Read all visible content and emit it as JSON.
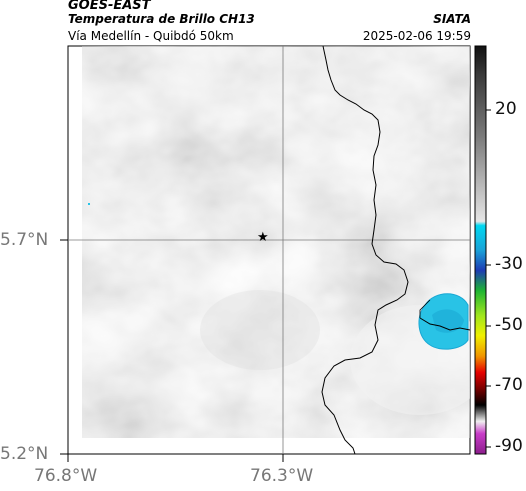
{
  "header": {
    "satellite": "GOES-EAST",
    "product": "Temperatura de Brillo CH13",
    "route": "Vía Medellín - Quibdó 50km",
    "organization": "SIATA",
    "datetime": "2025-02-06 19:59"
  },
  "axes": {
    "lat_ticks": [
      "5.7°N",
      "5.2°N"
    ],
    "lon_ticks": [
      "76.8°W",
      "76.3°W"
    ]
  },
  "marker": {
    "symbol": "★",
    "description": "star-marker"
  },
  "colorbar": {
    "ticks": [
      "20",
      "-30",
      "-50",
      "-70",
      "-90"
    ],
    "colors": {
      "dark": "#111111",
      "gray": "#c8c8c8",
      "cyan": "#00c8e6",
      "blue": "#1e3cb4",
      "green": "#1eb432",
      "yellow": "#f0f000",
      "red": "#e60000",
      "black": "#000000",
      "magenta": "#c83cc8"
    }
  },
  "colors": {
    "cloud_cyan": "#29c3e6",
    "cloud_deep": "#1aa8d4",
    "border_line": "#000000",
    "grid_line": "#7a7a7a"
  }
}
